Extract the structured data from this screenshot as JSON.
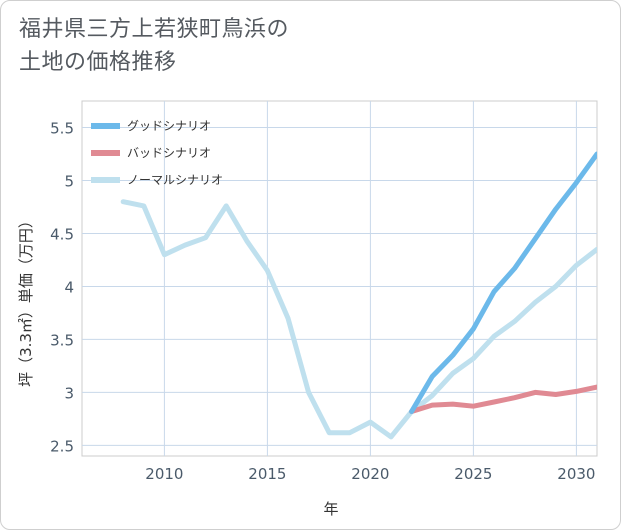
{
  "title_line1": "福井県三方上若狭町鳥浜の",
  "title_line2": "土地の価格推移",
  "chart_data": {
    "type": "line",
    "xlabel": "年",
    "ylabel": "坪（3.3㎡）単価（万円）",
    "xlim": [
      2006,
      2031
    ],
    "ylim": [
      2.4,
      5.75
    ],
    "x_ticks": [
      2010,
      2015,
      2020,
      2025,
      2030
    ],
    "y_ticks": [
      2.5,
      3,
      3.5,
      4,
      4.5,
      5,
      5.5
    ],
    "x_tick_labels": [
      "2010",
      "2015",
      "2020",
      "2025",
      "2030"
    ],
    "y_tick_labels": [
      "2.5",
      "3",
      "3.5",
      "4",
      "4.5",
      "5",
      "5.5"
    ],
    "grid": true,
    "legend_position": "top-left",
    "series": [
      {
        "name": "グッドシナリオ",
        "color": "#6cb9ea",
        "x": [
          2022,
          2023,
          2024,
          2025,
          2026,
          2027,
          2028,
          2029,
          2030,
          2031
        ],
        "y": [
          2.82,
          3.15,
          3.35,
          3.6,
          3.95,
          4.17,
          4.45,
          4.73,
          4.98,
          5.25
        ]
      },
      {
        "name": "バッドシナリオ",
        "color": "#e08a93",
        "x": [
          2022,
          2023,
          2024,
          2025,
          2026,
          2027,
          2028,
          2029,
          2030,
          2031
        ],
        "y": [
          2.82,
          2.88,
          2.89,
          2.87,
          2.91,
          2.95,
          3.0,
          2.98,
          3.01,
          3.05
        ]
      },
      {
        "name": "ノーマルシナリオ",
        "color": "#bfe0ee",
        "x": [
          2008,
          2009,
          2010,
          2011,
          2012,
          2013,
          2014,
          2015,
          2016,
          2017,
          2018,
          2019,
          2020,
          2021,
          2022,
          2023,
          2024,
          2025,
          2026,
          2027,
          2028,
          2029,
          2030,
          2031
        ],
        "y": [
          4.8,
          4.76,
          4.3,
          4.39,
          4.46,
          4.76,
          4.43,
          4.15,
          3.7,
          3.0,
          2.62,
          2.62,
          2.72,
          2.58,
          2.82,
          2.97,
          3.18,
          3.32,
          3.53,
          3.67,
          3.85,
          4.0,
          4.2,
          4.35
        ]
      }
    ]
  }
}
